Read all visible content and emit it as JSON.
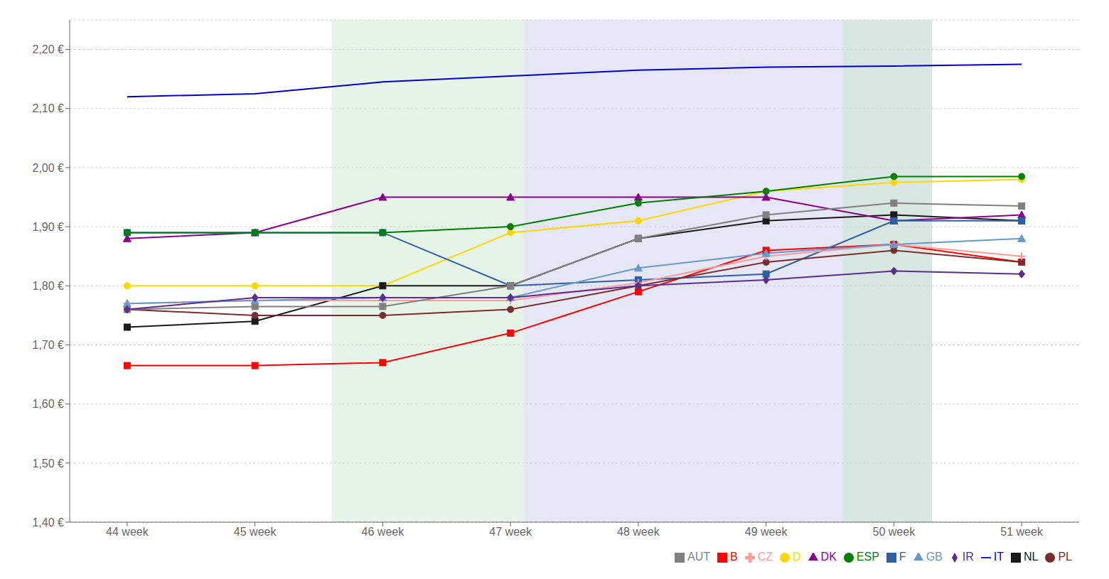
{
  "chart_data": {
    "type": "line",
    "x": [
      44,
      45,
      46,
      47,
      48,
      49,
      50,
      51
    ],
    "xlim": [
      43.55,
      51.45
    ],
    "xticks": [
      {
        "value": 44,
        "label": "44 week"
      },
      {
        "value": 45,
        "label": "45 week"
      },
      {
        "value": 46,
        "label": "46 week"
      },
      {
        "value": 47,
        "label": "47 week"
      },
      {
        "value": 48,
        "label": "48 week"
      },
      {
        "value": 49,
        "label": "49 week"
      },
      {
        "value": 50,
        "label": "50 week"
      },
      {
        "value": 51,
        "label": "51 week"
      }
    ],
    "ylim": [
      1.4,
      2.25
    ],
    "yticks": [
      {
        "value": 1.4,
        "label": "1,40 €"
      },
      {
        "value": 1.5,
        "label": "1,50 €"
      },
      {
        "value": 1.6,
        "label": "1,60 €"
      },
      {
        "value": 1.7,
        "label": "1,70 €"
      },
      {
        "value": 1.8,
        "label": "1,80 €"
      },
      {
        "value": 1.9,
        "label": "1,90 €"
      },
      {
        "value": 2.0,
        "label": "2,00 €"
      },
      {
        "value": 2.1,
        "label": "2,10 €"
      },
      {
        "value": 2.2,
        "label": "2,20 €"
      }
    ],
    "grid": "y",
    "legend": "lower right",
    "bands": [
      {
        "x0": 45.6,
        "x1": 47.1,
        "color": "#C8E6C9"
      },
      {
        "x0": 47.1,
        "x1": 50.3,
        "color": "#C5CAE9"
      },
      {
        "x0": 49.6,
        "x1": 50.3,
        "color": "#C8E6C9"
      }
    ],
    "series": [
      {
        "name": "D",
        "color": "#FFD700",
        "marker": "circle",
        "values": [
          1.8,
          1.8,
          1.8,
          1.89,
          1.91,
          1.96,
          1.975,
          1.98
        ]
      },
      {
        "name": "NL",
        "color": "#1A1A1A",
        "marker": "square",
        "values": [
          1.73,
          1.74,
          1.8,
          1.8,
          1.88,
          1.91,
          1.92,
          1.91
        ]
      },
      {
        "name": "DK",
        "color": "#8B008B",
        "marker": "triangle",
        "values": [
          1.88,
          1.89,
          1.95,
          1.95,
          1.95,
          1.95,
          1.91,
          1.92
        ]
      },
      {
        "name": "B",
        "color": "#FF0000",
        "marker": "square",
        "values": [
          1.665,
          1.665,
          1.67,
          1.72,
          1.79,
          1.86,
          1.87,
          1.84
        ]
      },
      {
        "name": "F",
        "color": "#2E5FA3",
        "marker": "square",
        "values": [
          1.89,
          1.89,
          1.89,
          1.8,
          1.81,
          1.82,
          1.91,
          1.91
        ]
      },
      {
        "name": "PL",
        "color": "#7B2D2D",
        "marker": "circle",
        "values": [
          1.76,
          1.75,
          1.75,
          1.76,
          1.8,
          1.84,
          1.86,
          1.84
        ]
      },
      {
        "name": "CZ",
        "color": "#FF9999",
        "marker": "plus",
        "values": [
          1.77,
          1.775,
          1.775,
          1.775,
          1.805,
          1.85,
          1.87,
          1.85
        ]
      },
      {
        "name": "IT",
        "color": "#0000CD",
        "marker": "none",
        "values": [
          2.12,
          2.125,
          2.145,
          2.155,
          2.165,
          2.17,
          2.172,
          2.175
        ]
      },
      {
        "name": "ESP",
        "color": "#008000",
        "marker": "circle",
        "values": [
          1.89,
          1.89,
          1.89,
          1.9,
          1.94,
          1.96,
          1.985,
          1.985
        ]
      },
      {
        "name": "AUT",
        "color": "#808080",
        "marker": "square",
        "values": [
          1.76,
          1.765,
          1.765,
          1.8,
          1.88,
          1.92,
          1.94,
          1.935
        ]
      },
      {
        "name": "GB",
        "color": "#6699CC",
        "marker": "triangle",
        "values": [
          1.77,
          1.775,
          1.78,
          1.78,
          1.83,
          1.855,
          1.87,
          1.88
        ]
      },
      {
        "name": "IR",
        "color": "#5B2D8E",
        "marker": "diamond",
        "values": [
          1.76,
          1.78,
          1.78,
          1.78,
          1.8,
          1.81,
          1.825,
          1.82
        ]
      }
    ]
  }
}
